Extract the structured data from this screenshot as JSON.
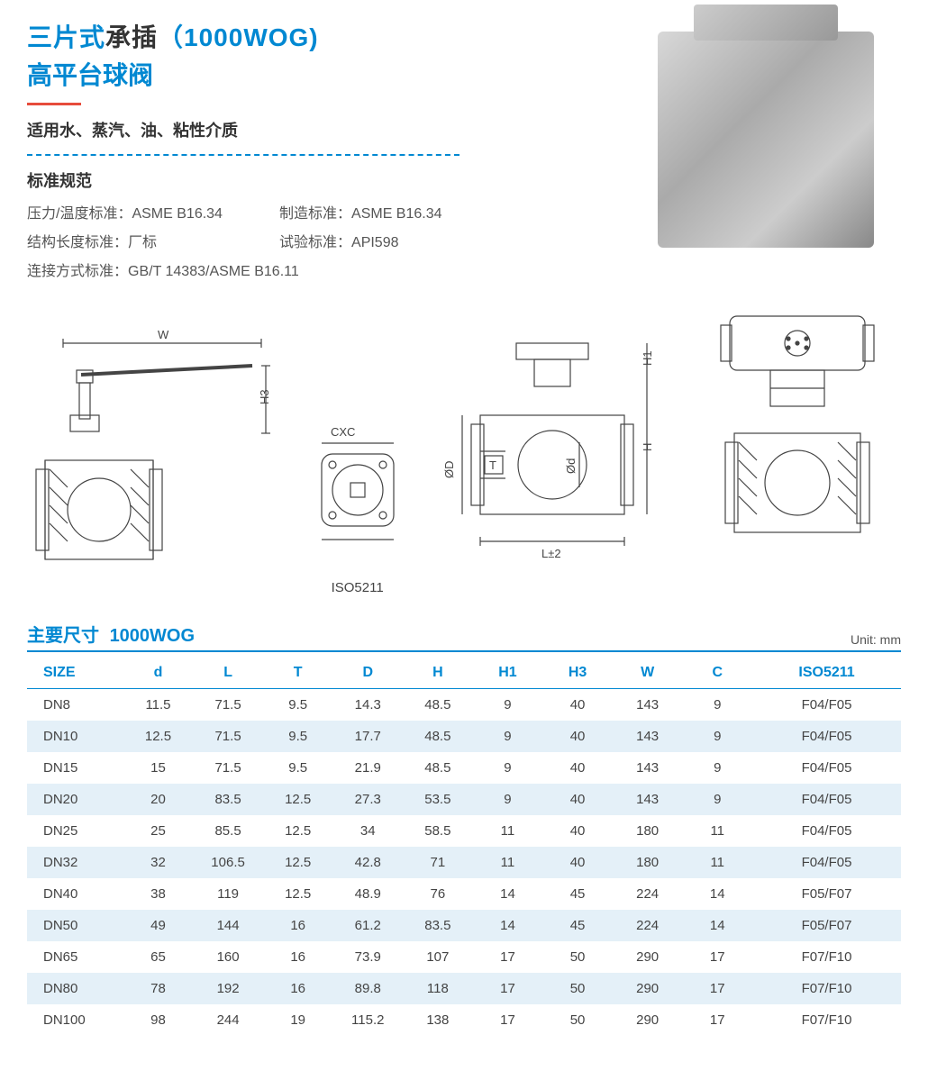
{
  "colors": {
    "brand_blue": "#0088d2",
    "accent_red": "#e74c3c",
    "text_dark": "#333333",
    "text_muted": "#555555",
    "row_stripe": "#e4f0f8",
    "background": "#ffffff"
  },
  "fonts": {
    "title_size_pt": 28,
    "subtitle_size_pt": 18,
    "body_size_pt": 16,
    "table_header_size_pt": 16,
    "table_cell_size_pt": 15
  },
  "title": {
    "line1_blue_prefix": "三片式",
    "line1_black": "承插",
    "line1_blue_suffix": "（1000WOG)",
    "line2": "高平台球阀"
  },
  "subtitle": "适用水、蒸汽、油、粘性介质",
  "standards_heading": "标准规范",
  "standards": {
    "pressure_temp_label": "压力/温度标准：",
    "pressure_temp_value": "ASME B16.34",
    "manufacture_label": "制造标准：",
    "manufacture_value": "ASME B16.34",
    "structure_length_label": "结构长度标准：",
    "structure_length_value": "厂标",
    "test_label": "试验标准：",
    "test_value": "API598",
    "connection_label": "连接方式标准：",
    "connection_value": "GB/T 14383/ASME B16.11"
  },
  "diagram_labels": {
    "W": "W",
    "H3": "H3",
    "CXC": "CXC",
    "ISO5211": "ISO5211",
    "T": "T",
    "phiD": "ØD",
    "phid": "Ød",
    "H": "H",
    "H1": "H1",
    "Lpm2": "L±2"
  },
  "table": {
    "title_prefix": "主要尺寸",
    "title_spec": "1000WOG",
    "unit": "Unit: mm",
    "columns": [
      "SIZE",
      "d",
      "L",
      "T",
      "D",
      "H",
      "H1",
      "H3",
      "W",
      "C",
      "ISO5211"
    ],
    "col_widths_pct": [
      11,
      8,
      8,
      8,
      8,
      8,
      8,
      8,
      8,
      8,
      17
    ],
    "rows": [
      [
        "DN8",
        "11.5",
        "71.5",
        "9.5",
        "14.3",
        "48.5",
        "9",
        "40",
        "143",
        "9",
        "F04/F05"
      ],
      [
        "DN10",
        "12.5",
        "71.5",
        "9.5",
        "17.7",
        "48.5",
        "9",
        "40",
        "143",
        "9",
        "F04/F05"
      ],
      [
        "DN15",
        "15",
        "71.5",
        "9.5",
        "21.9",
        "48.5",
        "9",
        "40",
        "143",
        "9",
        "F04/F05"
      ],
      [
        "DN20",
        "20",
        "83.5",
        "12.5",
        "27.3",
        "53.5",
        "9",
        "40",
        "143",
        "9",
        "F04/F05"
      ],
      [
        "DN25",
        "25",
        "85.5",
        "12.5",
        "34",
        "58.5",
        "11",
        "40",
        "180",
        "11",
        "F04/F05"
      ],
      [
        "DN32",
        "32",
        "106.5",
        "12.5",
        "42.8",
        "71",
        "11",
        "40",
        "180",
        "11",
        "F04/F05"
      ],
      [
        "DN40",
        "38",
        "119",
        "12.5",
        "48.9",
        "76",
        "14",
        "45",
        "224",
        "14",
        "F05/F07"
      ],
      [
        "DN50",
        "49",
        "144",
        "16",
        "61.2",
        "83.5",
        "14",
        "45",
        "224",
        "14",
        "F05/F07"
      ],
      [
        "DN65",
        "65",
        "160",
        "16",
        "73.9",
        "107",
        "17",
        "50",
        "290",
        "17",
        "F07/F10"
      ],
      [
        "DN80",
        "78",
        "192",
        "16",
        "89.8",
        "118",
        "17",
        "50",
        "290",
        "17",
        "F07/F10"
      ],
      [
        "DN100",
        "98",
        "244",
        "19",
        "115.2",
        "138",
        "17",
        "50",
        "290",
        "17",
        "F07/F10"
      ]
    ]
  }
}
